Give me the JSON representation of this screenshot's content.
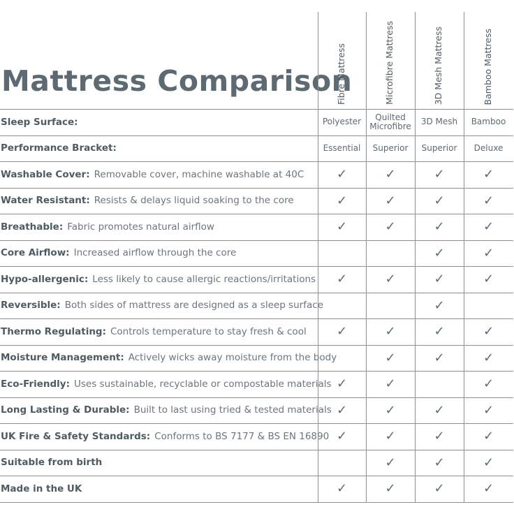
{
  "header": {
    "title": "Mattress Comparison"
  },
  "table": {
    "columns": [
      "Fibre Mattress",
      "Microfibre Mattress",
      "3D Mesh Mattress",
      "Bamboo Mattress"
    ],
    "rows": [
      {
        "label": "Sleep Surface:",
        "description": null,
        "cells": [
          "Polyester",
          "Quilted Microfibre",
          "3D Mesh",
          "Bamboo"
        ]
      },
      {
        "label": "Performance Bracket:",
        "description": null,
        "cells": [
          "Essential",
          "Superior",
          "Superior",
          "Deluxe"
        ]
      },
      {
        "label": "Washable Cover:",
        "description": "Removable cover, machine washable at 40C",
        "cells": [
          "✓",
          "✓",
          "✓",
          "✓"
        ]
      },
      {
        "label": "Water Resistant:",
        "description": "Resists & delays liquid soaking to the core",
        "cells": [
          "✓",
          "✓",
          "✓",
          "✓"
        ]
      },
      {
        "label": "Breathable:",
        "description": "Fabric promotes natural airflow",
        "cells": [
          "✓",
          "✓",
          "✓",
          "✓"
        ]
      },
      {
        "label": "Core Airflow:",
        "description": "Increased airflow through the core",
        "cells": [
          null,
          null,
          "✓",
          "✓"
        ]
      },
      {
        "label": "Hypo-allergenic:",
        "description": "Less likely to cause allergic reactions/irritations",
        "cells": [
          "✓",
          "✓",
          "✓",
          "✓"
        ]
      },
      {
        "label": "Reversible:",
        "description": "Both sides of mattress are designed as a sleep surface",
        "cells": [
          null,
          null,
          "✓",
          null
        ]
      },
      {
        "label": "Thermo Regulating:",
        "description": "Controls temperature to stay fresh & cool",
        "cells": [
          "✓",
          "✓",
          "✓",
          "✓"
        ]
      },
      {
        "label": "Moisture Management:",
        "description": "Actively wicks away moisture from the body",
        "cells": [
          null,
          "✓",
          "✓",
          "✓"
        ]
      },
      {
        "label": "Eco-Friendly:",
        "description": "Uses sustainable, recyclable or compostable materials",
        "cells": [
          "✓",
          "✓",
          null,
          "✓"
        ]
      },
      {
        "label": "Long Lasting & Durable:",
        "description": "Built to last using tried & tested materials",
        "cells": [
          "✓",
          "✓",
          "✓",
          "✓"
        ]
      },
      {
        "label": "UK Fire & Safety Standards:",
        "description": "Conforms to BS 7177 & BS EN 16890",
        "cells": [
          "✓",
          "✓",
          "✓",
          "✓"
        ]
      },
      {
        "label": "Suitable from birth",
        "description": null,
        "cells": [
          null,
          "✓",
          "✓",
          "✓"
        ]
      },
      {
        "label": "Made in the UK",
        "description": null,
        "cells": [
          "✓",
          "✓",
          "✓",
          "✓"
        ]
      }
    ]
  }
}
